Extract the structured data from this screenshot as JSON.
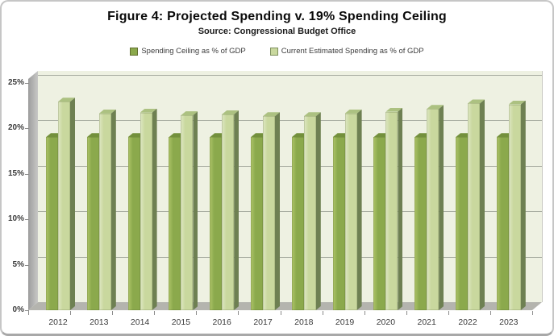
{
  "figure": {
    "kind": "static-chart-image"
  },
  "chart_data": {
    "type": "bar",
    "style": "3d-clustered-column",
    "title": "Figure 4: Projected Spending v. 19% Spending Ceiling",
    "subtitle": "Source: Congressional Budget Office",
    "categories": [
      "2012",
      "2013",
      "2014",
      "2015",
      "2016",
      "2017",
      "2018",
      "2019",
      "2020",
      "2021",
      "2022",
      "2023"
    ],
    "series": [
      {
        "name": "Spending Ceiling as % of GDP",
        "key": "ceiling",
        "values": [
          19.0,
          19.0,
          19.0,
          19.0,
          19.0,
          19.0,
          19.0,
          19.0,
          19.0,
          19.0,
          19.0,
          19.0
        ],
        "color": "#8BA94C",
        "highlight_color": "#AEC468",
        "top_color": "#73903C",
        "side_color": "#5B7030"
      },
      {
        "name": "Current Estimated Spending as % of GDP",
        "key": "current",
        "values": [
          22.9,
          21.6,
          21.7,
          21.4,
          21.5,
          21.3,
          21.3,
          21.6,
          21.8,
          22.1,
          22.7,
          22.6
        ],
        "color": "#C9D89E",
        "highlight_color": "#DEE7C3",
        "top_color": "#ACC181",
        "side_color": "#6E8052"
      }
    ],
    "xlabel": "",
    "ylabel": "",
    "y_axis": {
      "min": 0,
      "max": 25,
      "step": 5,
      "tick_labels": [
        "0%",
        "5%",
        "10%",
        "15%",
        "20%",
        "25%"
      ]
    },
    "grid": "horizontal",
    "legend_position": "top",
    "colors": {
      "plot_back_wall": "#EEF1E2",
      "gridline": "#A9AEA2",
      "side_wall": "#9D9D9D",
      "side_wall_light": "#C8C8C6",
      "floor": "#B4B4AE",
      "axis_tick": "#8C8C8C",
      "axis_text": "#3C3C3C"
    }
  }
}
